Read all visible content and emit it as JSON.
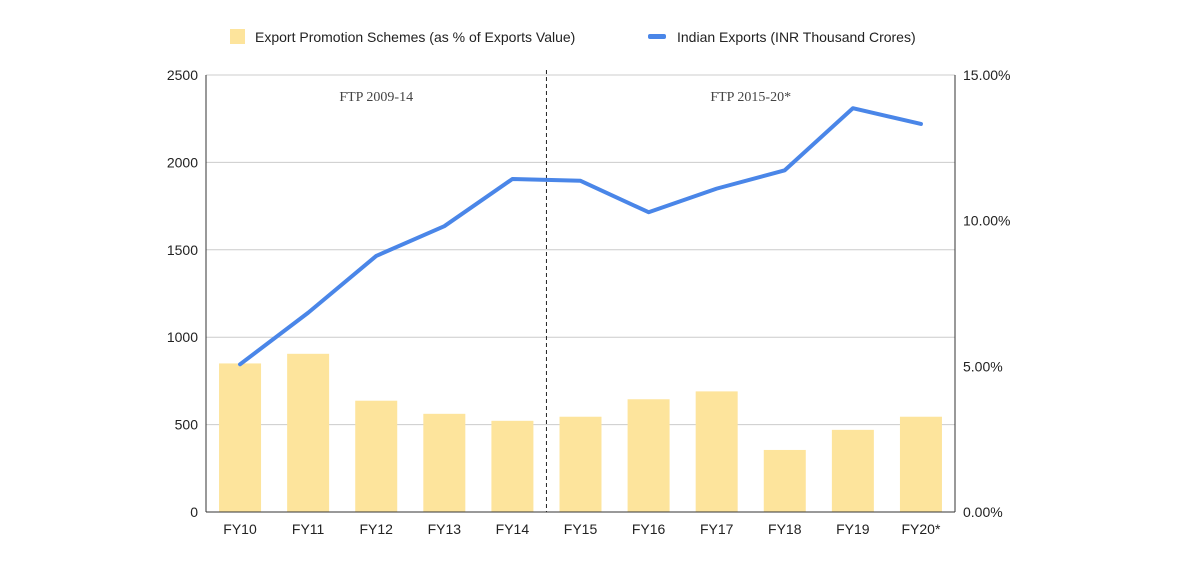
{
  "chart_data": {
    "type": "bar",
    "title": "",
    "categories": [
      "FY10",
      "FY11",
      "FY12",
      "FY13",
      "FY14",
      "FY15",
      "FY16",
      "FY17",
      "FY18",
      "FY19",
      "FY20*"
    ],
    "series": [
      {
        "name": "Export Promotion Schemes (as % of Exports Value)",
        "kind": "bar",
        "axis": "right",
        "color": "#fde49c",
        "values": [
          5.1,
          5.43,
          3.82,
          3.37,
          3.13,
          3.27,
          3.87,
          4.14,
          2.13,
          2.82,
          3.27
        ]
      },
      {
        "name": "Indian Exports (INR Thousand Crores)",
        "kind": "line",
        "axis": "left",
        "color": "#4a86e8",
        "values": [
          845,
          1140,
          1465,
          1635,
          1905,
          1895,
          1715,
          1850,
          1955,
          2310,
          2220
        ]
      }
    ],
    "y_left": {
      "label": "",
      "range": [
        0,
        2500
      ],
      "ticks": [
        0,
        500,
        1000,
        1500,
        2000,
        2500
      ],
      "tick_labels": [
        "0",
        "500",
        "1000",
        "1500",
        "2000",
        "2500"
      ]
    },
    "y_right": {
      "label": "",
      "range": [
        0,
        15
      ],
      "ticks": [
        0,
        5,
        10,
        15
      ],
      "tick_labels": [
        "0.00%",
        "5.00%",
        "10.00%",
        "15.00%"
      ]
    },
    "xlabel": "",
    "grid": true,
    "legend": "top-center",
    "divider_after_index": 4,
    "period_labels": [
      "FTP 2009-14",
      "FTP 2015-20*"
    ]
  }
}
